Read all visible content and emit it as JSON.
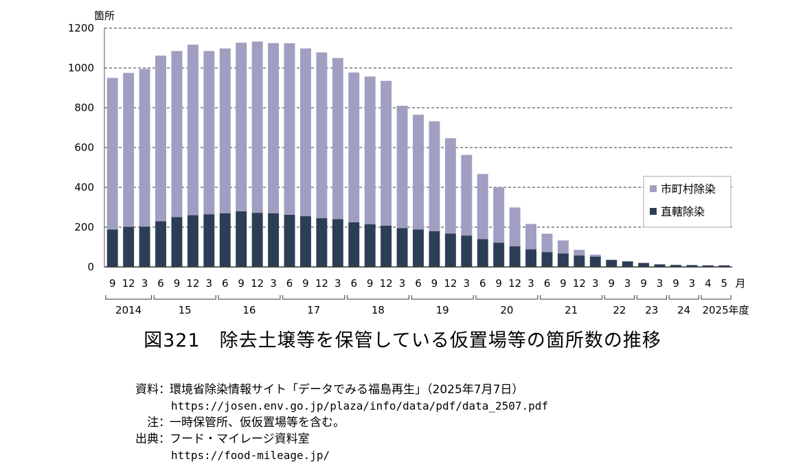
{
  "chart_data": {
    "type": "bar",
    "stacked": true,
    "title": "図321　除去土壌等を保管している仮置場等の箇所数の推移",
    "yunit": "箇所",
    "ylim": [
      0,
      1200
    ],
    "yticks": [
      0,
      200,
      400,
      600,
      800,
      1000,
      1200
    ],
    "grid": "horizontal dashed",
    "legend_position": "right",
    "month_unit": "月",
    "year_unit": "年度",
    "months": [
      "9",
      "12",
      "3",
      "6",
      "9",
      "12",
      "3",
      "6",
      "9",
      "12",
      "3",
      "6",
      "9",
      "12",
      "3",
      "6",
      "9",
      "12",
      "3",
      "6",
      "9",
      "12",
      "3",
      "6",
      "9",
      "12",
      "3",
      "6",
      "9",
      "12",
      "3",
      "9",
      "3",
      "9",
      "3",
      "9",
      "3",
      "4",
      "5"
    ],
    "year_groups": [
      {
        "label": "2014",
        "start": 0,
        "end": 2
      },
      {
        "label": "15",
        "start": 3,
        "end": 6
      },
      {
        "label": "16",
        "start": 7,
        "end": 10
      },
      {
        "label": "17",
        "start": 11,
        "end": 14
      },
      {
        "label": "18",
        "start": 15,
        "end": 18
      },
      {
        "label": "19",
        "start": 19,
        "end": 22
      },
      {
        "label": "20",
        "start": 23,
        "end": 26
      },
      {
        "label": "21",
        "start": 27,
        "end": 30
      },
      {
        "label": "22",
        "start": 31,
        "end": 32
      },
      {
        "label": "23",
        "start": 33,
        "end": 34
      },
      {
        "label": "24",
        "start": 35,
        "end": 36
      },
      {
        "label": "2025",
        "start": 37,
        "end": 38
      }
    ],
    "series": [
      {
        "name": "直轄除染",
        "color": "#2c3e57",
        "values": [
          188,
          202,
          203,
          230,
          250,
          260,
          265,
          270,
          280,
          272,
          270,
          262,
          255,
          245,
          240,
          225,
          215,
          208,
          195,
          188,
          180,
          168,
          158,
          140,
          122,
          104,
          88,
          75,
          68,
          58,
          52,
          35,
          28,
          20,
          13,
          10,
          9,
          8,
          8
        ]
      },
      {
        "name": "市町村除染",
        "color": "#a09fc1",
        "values": [
          762,
          773,
          792,
          832,
          835,
          857,
          820,
          828,
          847,
          861,
          855,
          862,
          843,
          833,
          810,
          752,
          742,
          727,
          615,
          577,
          552,
          479,
          405,
          327,
          278,
          195,
          128,
          92,
          65,
          28,
          10,
          2,
          1,
          1,
          1,
          1,
          1,
          1,
          1
        ]
      }
    ]
  },
  "notes": {
    "source_label": "資料",
    "source_text": "環境省除染情報サイト「データでみる福島再生」（2025年7月7日）",
    "source_url": "https://josen.env.go.jp/plaza/info/data/pdf/data_2507.pdf",
    "note_label": "注",
    "note_text": "一時保管所、仮仮置場等を含む。",
    "origin_label": "出典",
    "origin_text": "フード・マイレージ資料室",
    "origin_url": "https://food-mileage.jp/",
    "separator": "："
  }
}
